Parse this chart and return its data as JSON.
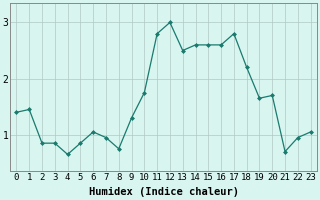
{
  "x": [
    0,
    1,
    2,
    3,
    4,
    5,
    6,
    7,
    8,
    9,
    10,
    11,
    12,
    13,
    14,
    15,
    16,
    17,
    18,
    19,
    20,
    21,
    22,
    23
  ],
  "y": [
    1.4,
    1.45,
    0.85,
    0.85,
    0.65,
    0.85,
    1.05,
    0.95,
    0.75,
    1.3,
    1.75,
    2.8,
    3.0,
    2.5,
    2.6,
    2.6,
    2.6,
    2.8,
    2.2,
    1.65,
    1.7,
    0.7,
    0.95,
    1.05
  ],
  "xlabel": "Humidex (Indice chaleur)",
  "yticks": [
    1,
    2,
    3
  ],
  "ylim": [
    0.35,
    3.35
  ],
  "line_color": "#1a7a6e",
  "bg_color": "#d8f5f0",
  "grid_color": "#b0c8c4",
  "xlabel_fontsize": 7.5,
  "tick_fontsize": 6.5
}
